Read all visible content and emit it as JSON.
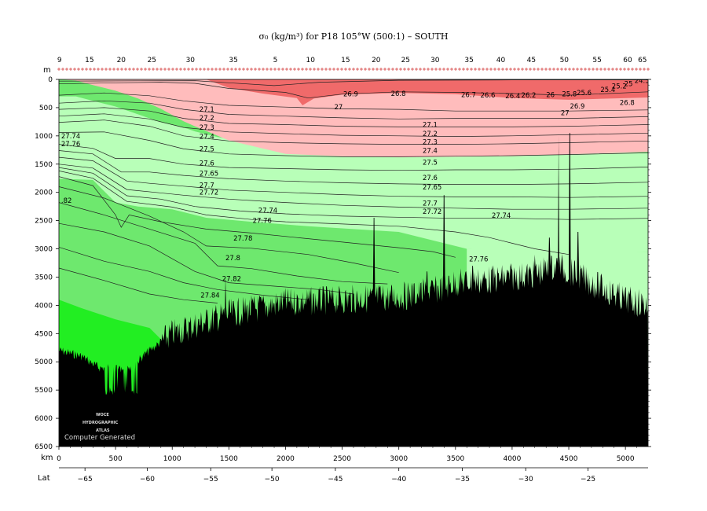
{
  "chart_data": {
    "type": "section",
    "title": "σ₀ (kg/m³) for P18 105°W (500:1) – SOUTH",
    "y_axis": {
      "unit_label": "m",
      "range": [
        0,
        6500
      ],
      "ticks": [
        "0",
        "500",
        "1000",
        "1500",
        "2000",
        "2500",
        "3000",
        "3500",
        "4000",
        "4500",
        "5000",
        "5500",
        "6000",
        "6500"
      ]
    },
    "x_axis": {
      "unit_label": "km",
      "range": [
        0,
        5200
      ],
      "ticks": [
        "0",
        "500",
        "1000",
        "1500",
        "2000",
        "2500",
        "3000",
        "3500",
        "4000",
        "4500",
        "5000"
      ]
    },
    "lat_axis": {
      "label": "Lat",
      "ticks": [
        {
          "km": 230,
          "label": "−65"
        },
        {
          "km": 780,
          "label": "−60"
        },
        {
          "km": 1340,
          "label": "−55"
        },
        {
          "km": 1880,
          "label": "−50"
        },
        {
          "km": 2440,
          "label": "−45"
        },
        {
          "km": 3000,
          "label": "−40"
        },
        {
          "km": 3560,
          "label": "−35"
        },
        {
          "km": 4120,
          "label": "−30"
        },
        {
          "km": 4670,
          "label": "−25"
        }
      ]
    },
    "station_labels": [
      {
        "km": 5,
        "label": "9"
      },
      {
        "km": 270,
        "label": "15"
      },
      {
        "km": 550,
        "label": "20"
      },
      {
        "km": 820,
        "label": "25"
      },
      {
        "km": 1160,
        "label": "30"
      },
      {
        "km": 1540,
        "label": "35"
      },
      {
        "km": 1910,
        "label": "5"
      },
      {
        "km": 2220,
        "label": "10"
      },
      {
        "km": 2530,
        "label": "15"
      },
      {
        "km": 2800,
        "label": "20"
      },
      {
        "km": 3060,
        "label": "25"
      },
      {
        "km": 3320,
        "label": "30"
      },
      {
        "km": 3620,
        "label": "35"
      },
      {
        "km": 3900,
        "label": "40"
      },
      {
        "km": 4170,
        "label": "45"
      },
      {
        "km": 4460,
        "label": "50"
      },
      {
        "km": 4750,
        "label": "55"
      },
      {
        "km": 5020,
        "label": "60"
      },
      {
        "km": 5150,
        "label": "65"
      }
    ],
    "color_bands": [
      {
        "name": "light-pink",
        "color": "#ffbcbc"
      },
      {
        "name": "red",
        "color": "#f06a6a"
      },
      {
        "name": "light-green",
        "color": "#b8ffb8"
      },
      {
        "name": "green",
        "color": "#6ee86e"
      },
      {
        "name": "bright-green",
        "color": "#22ee22"
      },
      {
        "name": "bottom",
        "color": "#000000"
      }
    ],
    "contour_labels": [
      {
        "text": "24.5",
        "km": 5080,
        "depth": 20
      },
      {
        "text": "25",
        "km": 4990,
        "depth": 80
      },
      {
        "text": "25.2",
        "km": 4880,
        "depth": 120
      },
      {
        "text": "25.4",
        "km": 4780,
        "depth": 180
      },
      {
        "text": "25.6",
        "km": 4570,
        "depth": 240
      },
      {
        "text": "25.8",
        "km": 4440,
        "depth": 260
      },
      {
        "text": "26",
        "km": 4300,
        "depth": 270
      },
      {
        "text": "26.2",
        "km": 4080,
        "depth": 280
      },
      {
        "text": "26.4",
        "km": 3940,
        "depth": 290
      },
      {
        "text": "26.6",
        "km": 3720,
        "depth": 280
      },
      {
        "text": "26.7",
        "km": 3550,
        "depth": 270
      },
      {
        "text": "26.8",
        "km": 2930,
        "depth": 250
      },
      {
        "text": "26.9",
        "km": 2510,
        "depth": 260
      },
      {
        "text": "27",
        "km": 2430,
        "depth": 490
      },
      {
        "text": "26.9",
        "km": 4510,
        "depth": 470
      },
      {
        "text": "26.8",
        "km": 4950,
        "depth": 410
      },
      {
        "text": "27",
        "km": 4430,
        "depth": 590
      },
      {
        "text": "27.1",
        "km": 1240,
        "depth": 530
      },
      {
        "text": "27.2",
        "km": 1240,
        "depth": 680
      },
      {
        "text": "27.3",
        "km": 1240,
        "depth": 850
      },
      {
        "text": "27.4",
        "km": 1240,
        "depth": 1010
      },
      {
        "text": "27.5",
        "km": 1240,
        "depth": 1230
      },
      {
        "text": "27.6",
        "km": 1240,
        "depth": 1480
      },
      {
        "text": "27.65",
        "km": 1240,
        "depth": 1660
      },
      {
        "text": "27.7",
        "km": 1240,
        "depth": 1870
      },
      {
        "text": "27.72",
        "km": 1240,
        "depth": 2000
      },
      {
        "text": "27.74",
        "km": 1760,
        "depth": 2320
      },
      {
        "text": "27.76",
        "km": 1710,
        "depth": 2500
      },
      {
        "text": "27.78",
        "km": 1540,
        "depth": 2810
      },
      {
        "text": "27.8",
        "km": 1470,
        "depth": 3160
      },
      {
        "text": "27.82",
        "km": 1440,
        "depth": 3530
      },
      {
        "text": "27.84",
        "km": 1250,
        "depth": 3820
      },
      {
        "text": "27.1",
        "km": 3210,
        "depth": 800
      },
      {
        "text": "27.2",
        "km": 3210,
        "depth": 960
      },
      {
        "text": "27.3",
        "km": 3210,
        "depth": 1110
      },
      {
        "text": "27.4",
        "km": 3210,
        "depth": 1260
      },
      {
        "text": "27.5",
        "km": 3210,
        "depth": 1470
      },
      {
        "text": "27.6",
        "km": 3210,
        "depth": 1740
      },
      {
        "text": "27.65",
        "km": 3210,
        "depth": 1910
      },
      {
        "text": "27.7",
        "km": 3210,
        "depth": 2190
      },
      {
        "text": "27.72",
        "km": 3210,
        "depth": 2340
      },
      {
        "text": "27.74",
        "km": 3820,
        "depth": 2410
      },
      {
        "text": "27.76",
        "km": 3620,
        "depth": 3180
      },
      {
        "text": "27.74",
        "km": 20,
        "depth": 1000
      },
      {
        "text": "27.76",
        "km": 20,
        "depth": 1140
      },
      {
        "text": ".82",
        "km": 20,
        "depth": 2140
      }
    ],
    "contour_lines": [
      [
        [
          0,
          30
        ],
        [
          700,
          25
        ],
        [
          1200,
          22
        ],
        [
          1500,
          60
        ],
        [
          1900,
          110
        ],
        [
          2300,
          50
        ],
        [
          3000,
          15
        ],
        [
          4000,
          10
        ],
        [
          5200,
          8
        ]
      ],
      [
        [
          0,
          80
        ],
        [
          500,
          60
        ],
        [
          900,
          50
        ],
        [
          1200,
          70
        ],
        [
          1500,
          160
        ],
        [
          2000,
          230
        ],
        [
          2200,
          330
        ],
        [
          2500,
          260
        ],
        [
          3000,
          220
        ],
        [
          3500,
          230
        ],
        [
          4000,
          250
        ],
        [
          4500,
          280
        ],
        [
          5200,
          220
        ]
      ],
      [
        [
          0,
          280
        ],
        [
          400,
          240
        ],
        [
          800,
          290
        ],
        [
          1100,
          380
        ],
        [
          1500,
          460
        ],
        [
          2000,
          490
        ],
        [
          2500,
          520
        ],
        [
          3000,
          530
        ],
        [
          3500,
          560
        ],
        [
          4000,
          560
        ],
        [
          4500,
          560
        ],
        [
          5200,
          540
        ]
      ],
      [
        [
          0,
          420
        ],
        [
          400,
          380
        ],
        [
          800,
          420
        ],
        [
          1100,
          530
        ],
        [
          1500,
          620
        ],
        [
          2000,
          650
        ],
        [
          2500,
          680
        ],
        [
          3000,
          700
        ],
        [
          3500,
          690
        ],
        [
          4000,
          690
        ],
        [
          4500,
          690
        ],
        [
          5200,
          660
        ]
      ],
      [
        [
          0,
          530
        ],
        [
          400,
          500
        ],
        [
          800,
          560
        ],
        [
          1100,
          690
        ],
        [
          1500,
          780
        ],
        [
          2000,
          800
        ],
        [
          2500,
          830
        ],
        [
          3000,
          840
        ],
        [
          3500,
          840
        ],
        [
          4000,
          840
        ],
        [
          4500,
          830
        ],
        [
          5200,
          800
        ]
      ],
      [
        [
          0,
          650
        ],
        [
          400,
          610
        ],
        [
          800,
          700
        ],
        [
          1100,
          850
        ],
        [
          1500,
          930
        ],
        [
          2000,
          960
        ],
        [
          2500,
          990
        ],
        [
          3000,
          1000
        ],
        [
          3500,
          1010
        ],
        [
          4000,
          1000
        ],
        [
          4500,
          980
        ],
        [
          5200,
          950
        ]
      ],
      [
        [
          0,
          760
        ],
        [
          400,
          720
        ],
        [
          800,
          830
        ],
        [
          1100,
          1000
        ],
        [
          1500,
          1090
        ],
        [
          2000,
          1120
        ],
        [
          2500,
          1140
        ],
        [
          3000,
          1150
        ],
        [
          3500,
          1150
        ],
        [
          4000,
          1140
        ],
        [
          4500,
          1120
        ],
        [
          5200,
          1090
        ]
      ],
      [
        [
          0,
          940
        ],
        [
          400,
          930
        ],
        [
          800,
          1080
        ],
        [
          1100,
          1230
        ],
        [
          1500,
          1320
        ],
        [
          2000,
          1350
        ],
        [
          2500,
          1370
        ],
        [
          3000,
          1370
        ],
        [
          3500,
          1360
        ],
        [
          4000,
          1350
        ],
        [
          4500,
          1330
        ],
        [
          5200,
          1300
        ]
      ],
      [
        [
          0,
          1150
        ],
        [
          300,
          1220
        ],
        [
          500,
          1400
        ],
        [
          800,
          1400
        ],
        [
          1100,
          1500
        ],
        [
          1500,
          1560
        ],
        [
          2000,
          1580
        ],
        [
          2500,
          1600
        ],
        [
          3000,
          1610
        ],
        [
          3500,
          1600
        ],
        [
          4000,
          1600
        ],
        [
          4500,
          1590
        ],
        [
          5200,
          1550
        ]
      ],
      [
        [
          0,
          1260
        ],
        [
          300,
          1320
        ],
        [
          550,
          1640
        ],
        [
          800,
          1640
        ],
        [
          1100,
          1700
        ],
        [
          1500,
          1760
        ],
        [
          2000,
          1800
        ],
        [
          2500,
          1830
        ],
        [
          3000,
          1850
        ],
        [
          3500,
          1860
        ],
        [
          4000,
          1860
        ],
        [
          4500,
          1850
        ],
        [
          5200,
          1820
        ]
      ],
      [
        [
          0,
          1380
        ],
        [
          300,
          1440
        ],
        [
          600,
          1800
        ],
        [
          800,
          1840
        ],
        [
          1100,
          1890
        ],
        [
          1500,
          1960
        ],
        [
          2000,
          2000
        ],
        [
          2500,
          2040
        ],
        [
          3000,
          2070
        ],
        [
          3500,
          2080
        ],
        [
          4000,
          2080
        ],
        [
          4500,
          2090
        ],
        [
          5200,
          2070
        ]
      ],
      [
        [
          0,
          1500
        ],
        [
          300,
          1570
        ],
        [
          600,
          1950
        ],
        [
          850,
          2000
        ],
        [
          1100,
          2050
        ],
        [
          1500,
          2120
        ],
        [
          2000,
          2180
        ],
        [
          2500,
          2230
        ],
        [
          3000,
          2260
        ],
        [
          3500,
          2280
        ],
        [
          4000,
          2300
        ],
        [
          4500,
          2300
        ],
        [
          5200,
          2280
        ]
      ],
      [
        [
          0,
          1560
        ],
        [
          300,
          1660
        ],
        [
          600,
          2060
        ],
        [
          900,
          2120
        ],
        [
          1200,
          2250
        ],
        [
          1600,
          2330
        ],
        [
          2000,
          2380
        ],
        [
          2500,
          2420
        ],
        [
          3000,
          2440
        ],
        [
          3500,
          2460
        ],
        [
          4000,
          2460
        ],
        [
          4500,
          2480
        ],
        [
          5200,
          2460
        ]
      ],
      [
        [
          0,
          1620
        ],
        [
          300,
          1750
        ],
        [
          600,
          2160
        ],
        [
          1000,
          2260
        ],
        [
          1300,
          2400
        ],
        [
          1700,
          2480
        ],
        [
          2000,
          2520
        ],
        [
          2500,
          2560
        ],
        [
          3000,
          2600
        ],
        [
          3500,
          2700
        ],
        [
          3800,
          2800
        ],
        [
          4000,
          2900
        ],
        [
          4200,
          3000
        ],
        [
          4500,
          3100
        ]
      ],
      [
        [
          0,
          1720
        ],
        [
          300,
          1880
        ],
        [
          500,
          2400
        ],
        [
          550,
          2620
        ],
        [
          620,
          2400
        ],
        [
          900,
          2520
        ],
        [
          1300,
          2650
        ],
        [
          1700,
          2720
        ],
        [
          2100,
          2800
        ],
        [
          2500,
          2880
        ],
        [
          3000,
          2980
        ],
        [
          3300,
          3050
        ],
        [
          3500,
          3150
        ]
      ],
      [
        [
          0,
          1900
        ],
        [
          400,
          2100
        ],
        [
          800,
          2420
        ],
        [
          1100,
          2700
        ],
        [
          1300,
          2950
        ],
        [
          1700,
          2990
        ],
        [
          2200,
          3100
        ],
        [
          2600,
          3250
        ],
        [
          3000,
          3420
        ]
      ],
      [
        [
          0,
          2180
        ],
        [
          400,
          2400
        ],
        [
          800,
          2650
        ],
        [
          1200,
          2900
        ],
        [
          1400,
          3300
        ],
        [
          1700,
          3350
        ],
        [
          2100,
          3480
        ],
        [
          2500,
          3580
        ],
        [
          2900,
          3620
        ]
      ],
      [
        [
          0,
          2550
        ],
        [
          400,
          2700
        ],
        [
          800,
          2950
        ],
        [
          1200,
          3400
        ],
        [
          1500,
          3600
        ],
        [
          1900,
          3660
        ],
        [
          2300,
          3720
        ],
        [
          2600,
          3800
        ]
      ],
      [
        [
          0,
          2970
        ],
        [
          400,
          3220
        ],
        [
          800,
          3400
        ],
        [
          1100,
          3600
        ],
        [
          1400,
          3720
        ],
        [
          1800,
          3820
        ],
        [
          2200,
          3900
        ]
      ],
      [
        [
          0,
          3340
        ],
        [
          400,
          3560
        ],
        [
          800,
          3800
        ],
        [
          1100,
          3900
        ],
        [
          1400,
          3960
        ]
      ]
    ],
    "watermark_lines": [
      "WOCE",
      "HYDROGRAPHIC",
      "ATLAS"
    ],
    "footer_note": "Computer Generated"
  }
}
